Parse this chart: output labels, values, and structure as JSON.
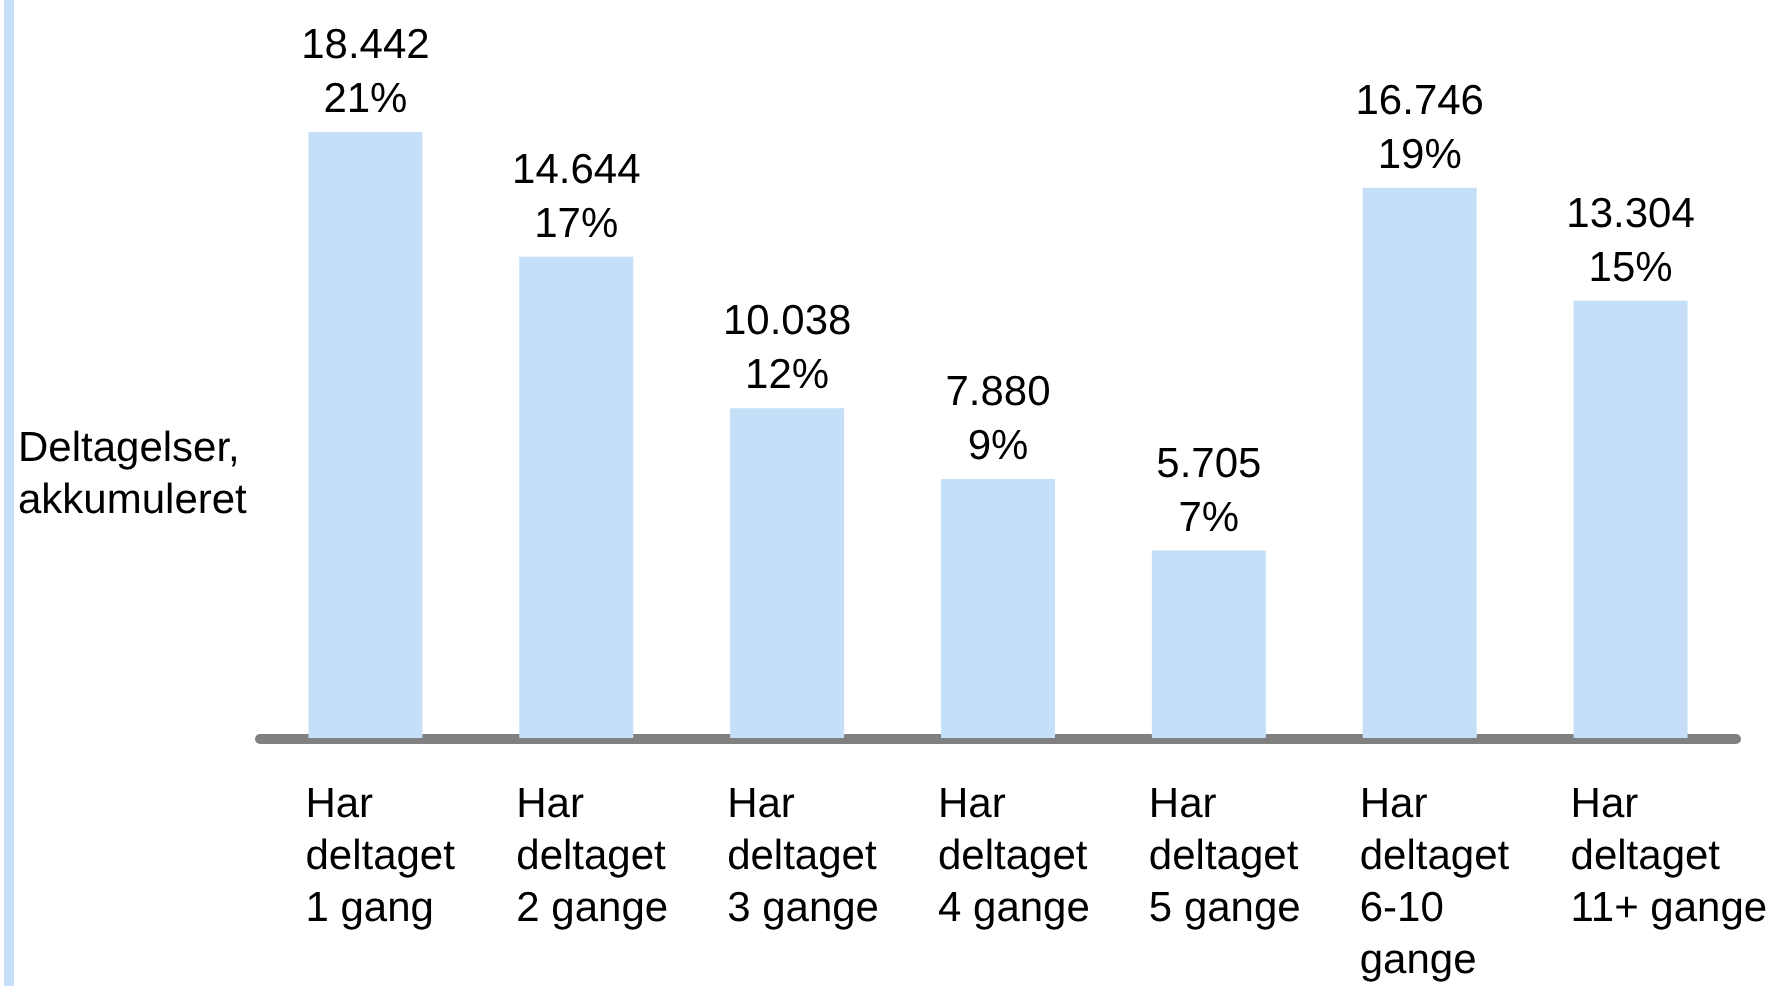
{
  "chart_data": {
    "type": "bar",
    "ylabel": "Deltagelser,\nakkumuleret",
    "categories": [
      "Har\ndeltaget\n1 gang",
      "Har\ndeltaget\n2 gange",
      "Har\ndeltaget\n3 gange",
      "Har\ndeltaget\n4 gange",
      "Har\ndeltaget\n5 gange",
      "Har\ndeltaget\n6-10\ngange",
      "Har\ndeltaget\n11+ gange"
    ],
    "values": [
      18442,
      14644,
      10038,
      7880,
      5705,
      16746,
      13304
    ],
    "color": "#c5dff8",
    "value_labels": [
      "18.442\n21%",
      "14.644\n17%",
      "10.038\n12%",
      "7.880\n9%",
      "5.705\n7%",
      "16.746\n19%",
      "13.304\n15%"
    ],
    "tick_labels": "x"
  }
}
